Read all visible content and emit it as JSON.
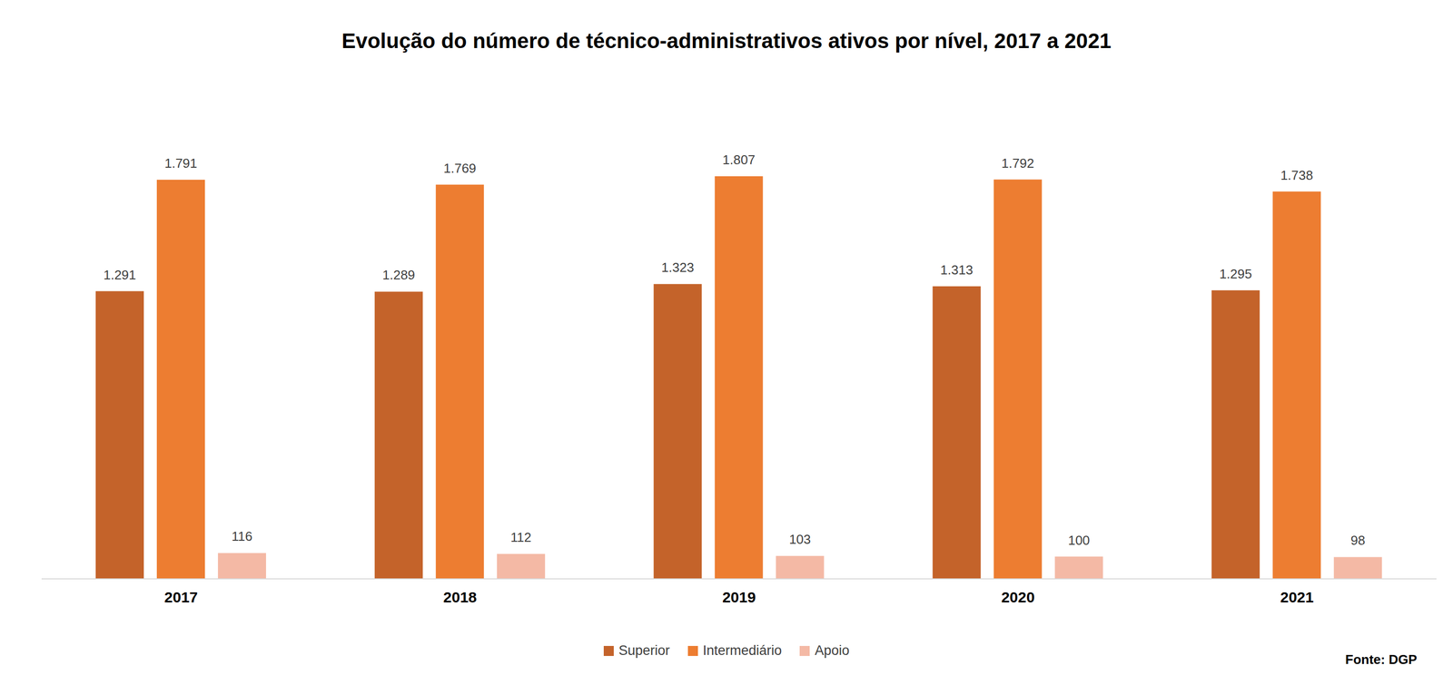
{
  "chart_data": {
    "type": "bar",
    "title": "Evolução do número de técnico-administrativos ativos por nível, 2017 a 2021",
    "categories": [
      "2017",
      "2018",
      "2019",
      "2020",
      "2021"
    ],
    "series": [
      {
        "name": "Superior",
        "color": "#c4632a",
        "values": [
          1291,
          1289,
          1323,
          1313,
          1295
        ],
        "value_labels": [
          "1.291",
          "1.289",
          "1.323",
          "1.313",
          "1.295"
        ]
      },
      {
        "name": "Intermediário",
        "color": "#ed7d31",
        "values": [
          1791,
          1769,
          1807,
          1792,
          1738
        ],
        "value_labels": [
          "1.791",
          "1.769",
          "1.807",
          "1.792",
          "1.738"
        ]
      },
      {
        "name": "Apoio",
        "color": "#f4b9a5",
        "values": [
          116,
          112,
          103,
          100,
          98
        ]
      }
    ],
    "ylim": [
      0,
      2000
    ],
    "grid": false,
    "legend": "bottom",
    "data_labels": true,
    "tick_labels": "x",
    "annotations": [
      "Fonte: DGP"
    ]
  }
}
